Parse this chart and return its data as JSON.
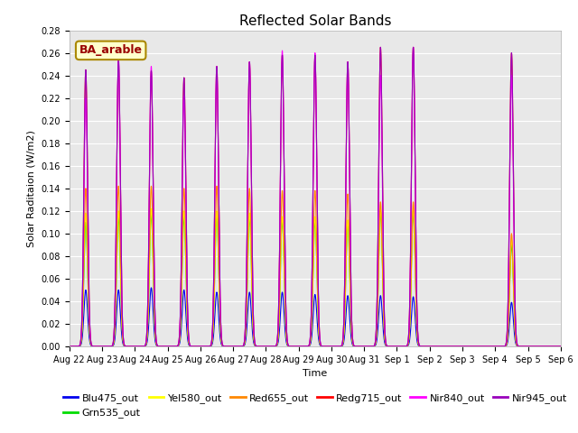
{
  "title": "Reflected Solar Bands",
  "xlabel": "Time",
  "ylabel": "Solar Raditaion (W/m2)",
  "ylim": [
    0,
    0.28
  ],
  "yticks": [
    0.0,
    0.02,
    0.04,
    0.06,
    0.08,
    0.1,
    0.12,
    0.14,
    0.16,
    0.18,
    0.2,
    0.22,
    0.24,
    0.26,
    0.28
  ],
  "legend_label": "BA_arable",
  "series": {
    "Blu475_out": {
      "color": "#0000ee"
    },
    "Grn535_out": {
      "color": "#00dd00"
    },
    "Yel580_out": {
      "color": "#ffff00"
    },
    "Red655_out": {
      "color": "#ff8800"
    },
    "Redg715_out": {
      "color": "#ff0000"
    },
    "Nir840_out": {
      "color": "#ff00ff"
    },
    "Nir945_out": {
      "color": "#9900bb"
    }
  },
  "day_peaks": {
    "Blu475_out": [
      0.05,
      0.05,
      0.052,
      0.05,
      0.048,
      0.048,
      0.048,
      0.046,
      0.045,
      0.045,
      0.044,
      0.0,
      0.0,
      0.039,
      0.0
    ],
    "Grn535_out": [
      0.11,
      0.115,
      0.118,
      0.115,
      0.117,
      0.115,
      0.112,
      0.112,
      0.11,
      0.12,
      0.12,
      0.0,
      0.0,
      0.09,
      0.0
    ],
    "Yel580_out": [
      0.118,
      0.12,
      0.122,
      0.12,
      0.12,
      0.118,
      0.115,
      0.115,
      0.112,
      0.122,
      0.122,
      0.0,
      0.0,
      0.095,
      0.0
    ],
    "Red655_out": [
      0.14,
      0.142,
      0.142,
      0.14,
      0.142,
      0.14,
      0.138,
      0.138,
      0.135,
      0.128,
      0.128,
      0.0,
      0.0,
      0.1,
      0.0
    ],
    "Redg715_out": [
      0.245,
      0.252,
      0.244,
      0.238,
      0.248,
      0.252,
      0.258,
      0.258,
      0.252,
      0.265,
      0.265,
      0.0,
      0.0,
      0.26,
      0.0
    ],
    "Nir840_out": [
      0.22,
      0.255,
      0.248,
      0.222,
      0.248,
      0.252,
      0.262,
      0.26,
      0.252,
      0.24,
      0.265,
      0.0,
      0.0,
      0.24,
      0.0
    ],
    "Nir945_out": [
      0.245,
      0.255,
      0.244,
      0.238,
      0.248,
      0.252,
      0.258,
      0.258,
      0.252,
      0.265,
      0.265,
      0.0,
      0.0,
      0.26,
      0.0
    ]
  },
  "xtick_labels": [
    "Aug 22",
    "Aug 23",
    "Aug 24",
    "Aug 25",
    "Aug 26",
    "Aug 27",
    "Aug 28",
    "Aug 29",
    "Aug 30",
    "Aug 31",
    "Sep 1",
    "Sep 2",
    "Sep 3",
    "Sep 4",
    "Sep 5",
    "Sep 6"
  ],
  "background_color": "#e8e8e8",
  "grid_color": "#ffffff",
  "title_fontsize": 11,
  "axis_fontsize": 8,
  "tick_fontsize": 7,
  "legend_fontsize": 8
}
